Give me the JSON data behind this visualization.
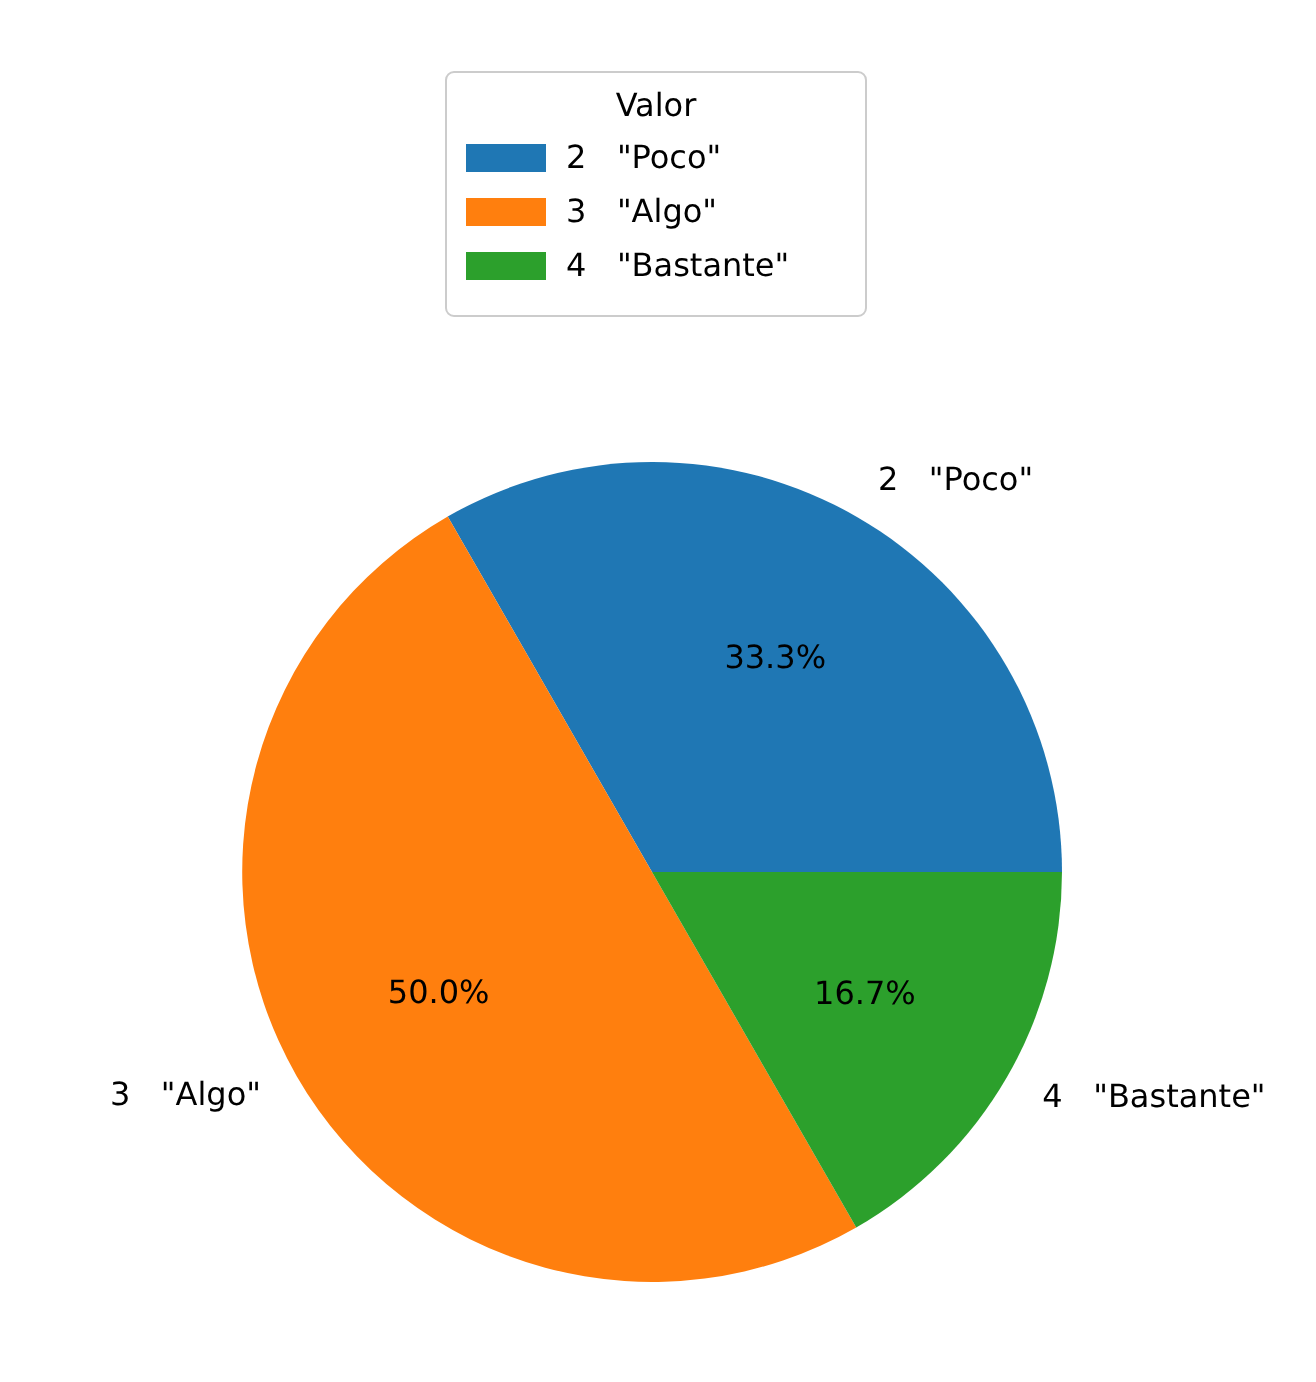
{
  "chart_data": {
    "type": "pie",
    "legend_title": "Valor",
    "legend": "top",
    "categories": [
      "2   \"Poco\"",
      "3   \"Algo\"",
      "4   \"Bastante\""
    ],
    "values": [
      33.3,
      50.0,
      16.7
    ],
    "colors": [
      "#1f77b4",
      "#ff7f0e",
      "#2ca02c"
    ],
    "value_labels": [
      "33.3%",
      "50.0%",
      "16.7%"
    ]
  }
}
